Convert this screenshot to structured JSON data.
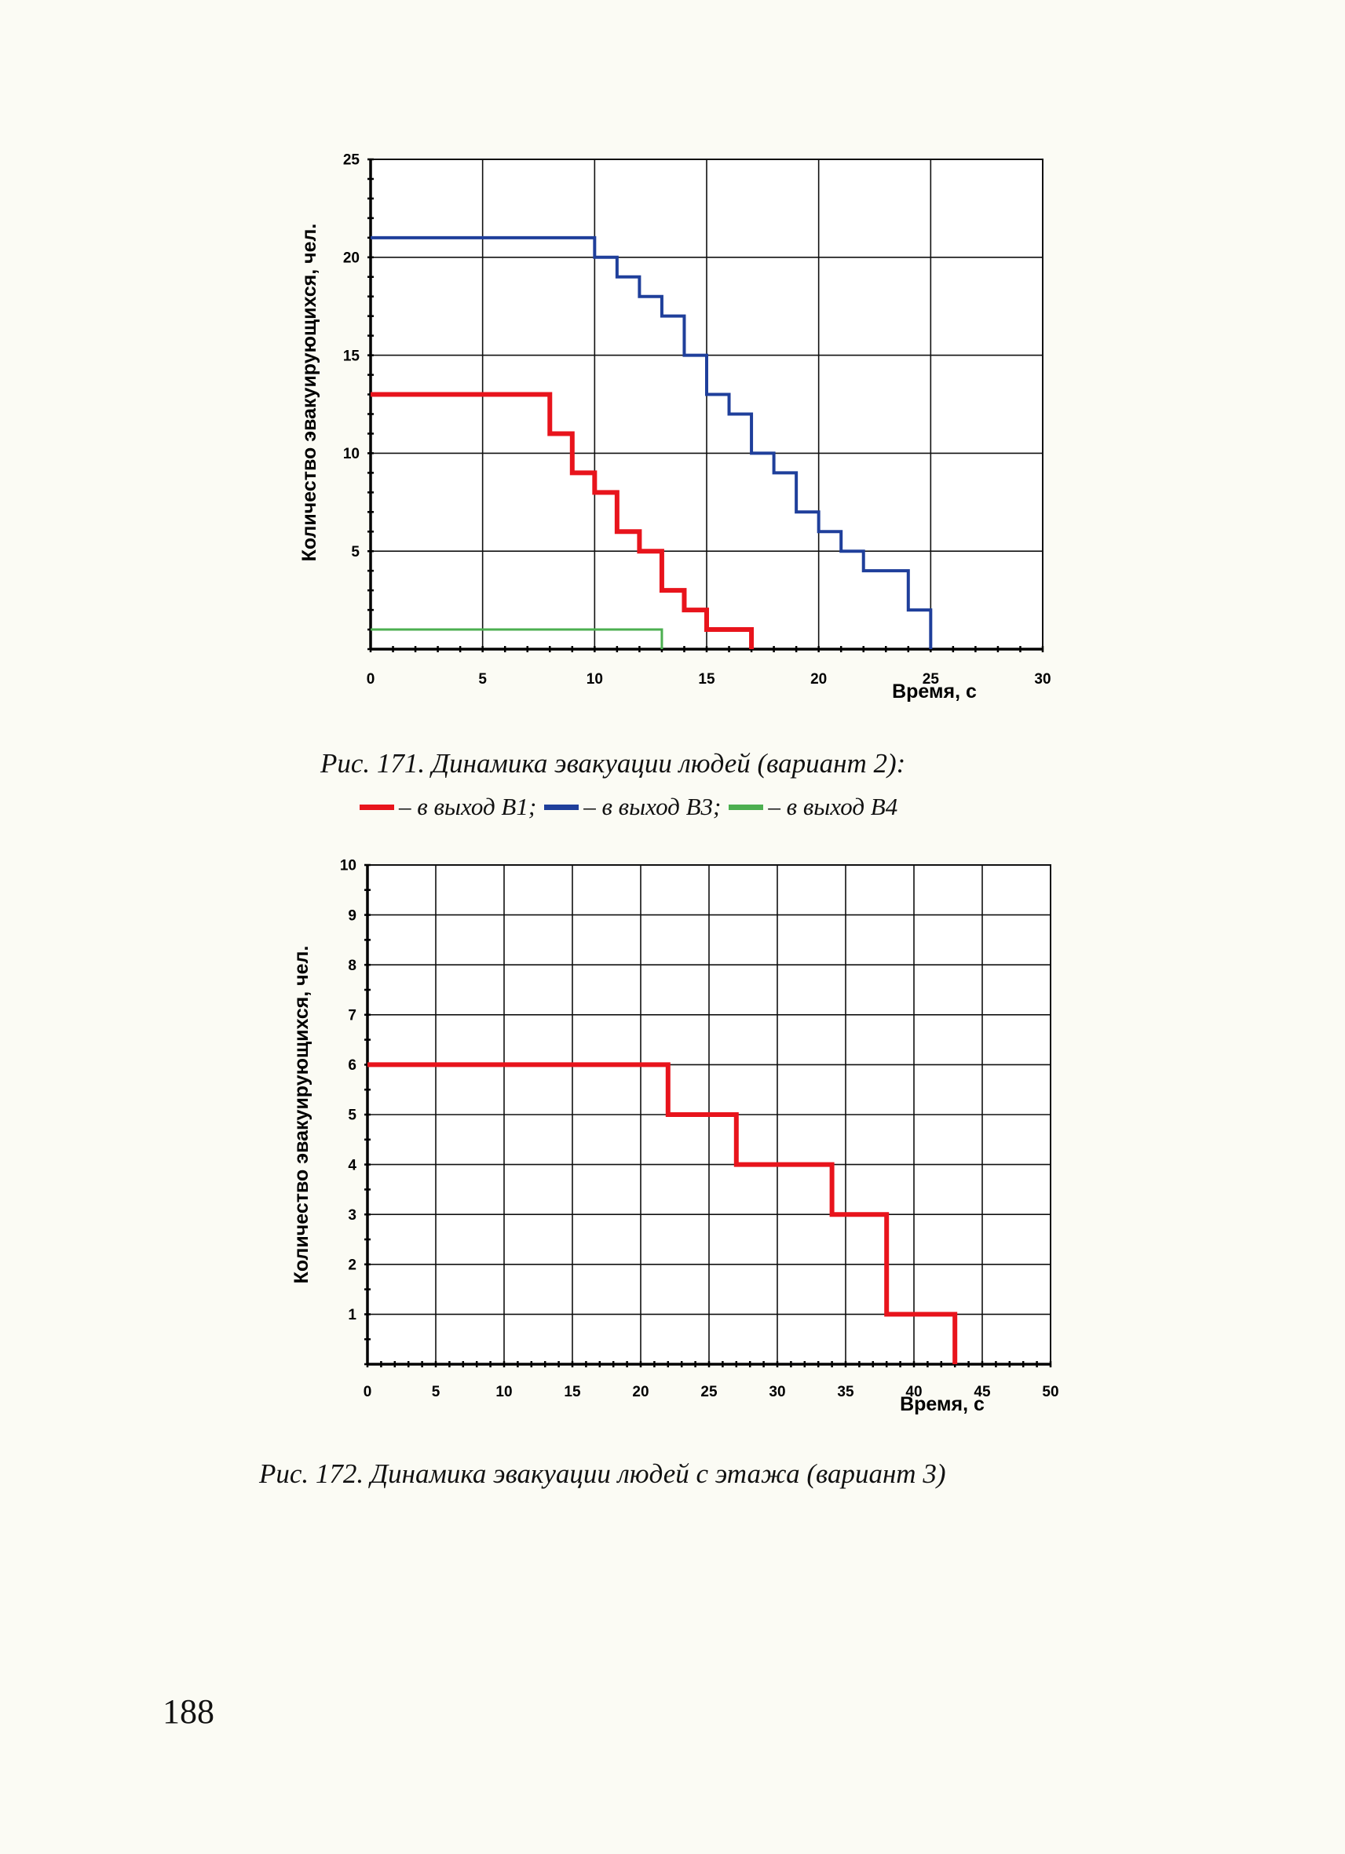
{
  "figure1": {
    "caption": "Рис. 171. Динамика эвакуации людей (вариант 2):",
    "legend": [
      {
        "label": "– в выход В1;",
        "color": "#e8141c"
      },
      {
        "label": "– в выход В3;",
        "color": "#1f3f9b"
      },
      {
        "label": "– в выход В4",
        "color": "#4caf50"
      }
    ]
  },
  "figure2": {
    "caption": "Рис. 172. Динамика эвакуации людей с этажа (вариант 3)"
  },
  "page_number": "188",
  "chart_data": [
    {
      "type": "line",
      "step": true,
      "ylabel": "Количество эвакуирующихся, чел.",
      "xlabel": "Время, с",
      "xlim": [
        0,
        30
      ],
      "ylim": [
        0,
        25
      ],
      "xticks": [
        0,
        5,
        10,
        15,
        20,
        25,
        30
      ],
      "yticks": [
        5,
        10,
        15,
        20,
        25
      ],
      "grid": true,
      "series": [
        {
          "name": "в выход В1",
          "color": "#e8141c",
          "x": [
            0,
            8,
            9,
            10,
            11,
            12,
            13,
            14,
            15,
            17
          ],
          "y": [
            13,
            11,
            9,
            8,
            6,
            5,
            3,
            2,
            1,
            0
          ]
        },
        {
          "name": "в выход В3",
          "color": "#1f3f9b",
          "x": [
            0,
            10,
            11,
            12,
            13,
            14,
            15,
            16,
            17,
            18,
            19,
            20,
            21,
            22,
            24,
            25
          ],
          "y": [
            21,
            20,
            19,
            18,
            17,
            15,
            13,
            12,
            10,
            9,
            7,
            6,
            5,
            4,
            2,
            0
          ]
        },
        {
          "name": "в выход В4",
          "color": "#4caf50",
          "x": [
            0,
            13
          ],
          "y": [
            1,
            0
          ]
        }
      ]
    },
    {
      "type": "line",
      "step": true,
      "ylabel": "Количество эвакуирующихся, чел.",
      "xlabel": "Время, с",
      "xlim": [
        0,
        50
      ],
      "ylim": [
        0,
        10
      ],
      "xticks": [
        0,
        5,
        10,
        15,
        20,
        25,
        30,
        35,
        40,
        45,
        50
      ],
      "yticks": [
        1,
        2,
        3,
        4,
        5,
        6,
        7,
        8,
        9,
        10
      ],
      "grid": true,
      "series": [
        {
          "color": "#e8141c",
          "x": [
            0,
            22,
            27,
            34,
            38,
            43
          ],
          "y": [
            6,
            5,
            4,
            3,
            1,
            0
          ]
        }
      ]
    }
  ]
}
